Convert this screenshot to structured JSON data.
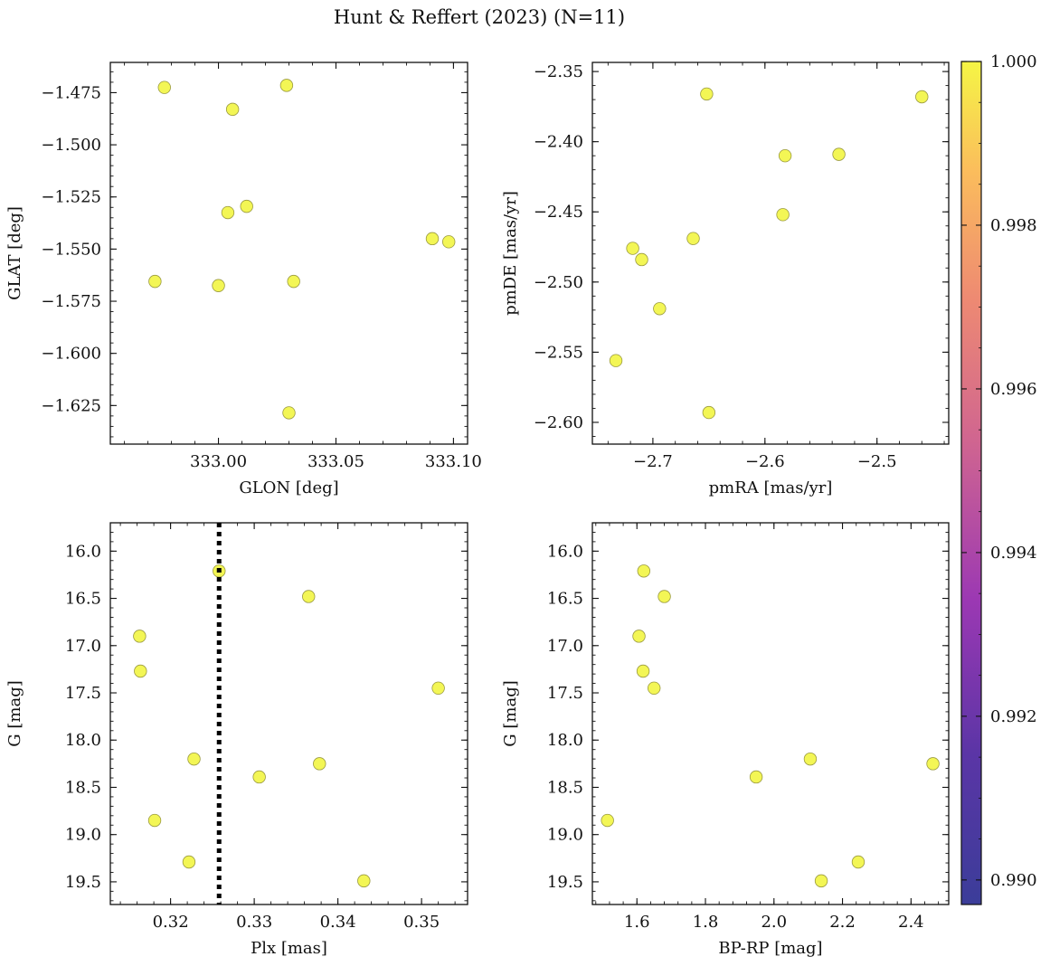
{
  "figure": {
    "title": "Hunt & Reffert (2023) (N=11)"
  },
  "colorbar": {
    "cmap": "plasma",
    "range": [
      0.9897,
      1.0
    ],
    "ticks": [
      {
        "value": 0.99,
        "label": "0.990"
      },
      {
        "value": 0.992,
        "label": "0.992"
      },
      {
        "value": 0.994,
        "label": "0.994"
      },
      {
        "value": 0.996,
        "label": "0.996"
      },
      {
        "value": 0.998,
        "label": "0.998"
      },
      {
        "value": 1.0,
        "label": "1.000"
      }
    ]
  },
  "point_style": {
    "color": "#f2f542",
    "edge": "#9a9a40",
    "opacity": 0.9
  },
  "chart_data": [
    {
      "type": "scatter",
      "id": "glon-glat",
      "xlabel": "GLON [deg]",
      "ylabel": "GLAT [deg]",
      "xlim": [
        332.954,
        333.106
      ],
      "ylim": [
        -1.6435,
        -1.4605
      ],
      "invert_y": false,
      "xticks": [
        {
          "value": 333.0,
          "label": "333.00"
        },
        {
          "value": 333.05,
          "label": "333.05"
        },
        {
          "value": 333.1,
          "label": "333.10"
        }
      ],
      "yticks": [
        {
          "value": -1.475,
          "label": "−1.475"
        },
        {
          "value": -1.5,
          "label": "−1.500"
        },
        {
          "value": -1.525,
          "label": "−1.525"
        },
        {
          "value": -1.55,
          "label": "−1.550"
        },
        {
          "value": -1.575,
          "label": "−1.575"
        },
        {
          "value": -1.6,
          "label": "−1.600"
        },
        {
          "value": -1.625,
          "label": "−1.625"
        }
      ],
      "points": [
        {
          "x": 332.977,
          "y": -1.4725
        },
        {
          "x": 333.029,
          "y": -1.4715
        },
        {
          "x": 333.006,
          "y": -1.483
        },
        {
          "x": 333.004,
          "y": -1.5325
        },
        {
          "x": 333.012,
          "y": -1.5295
        },
        {
          "x": 333.091,
          "y": -1.545
        },
        {
          "x": 333.098,
          "y": -1.5465
        },
        {
          "x": 332.973,
          "y": -1.5655
        },
        {
          "x": 333.0,
          "y": -1.5675
        },
        {
          "x": 333.032,
          "y": -1.5655
        },
        {
          "x": 333.03,
          "y": -1.6285
        }
      ]
    },
    {
      "type": "scatter",
      "id": "pmra-pmde",
      "xlabel": "pmRA [mas/yr]",
      "ylabel": "pmDE [mas/yr]",
      "xlim": [
        -2.754,
        -2.436
      ],
      "ylim": [
        -2.6155,
        -2.3435
      ],
      "invert_y": false,
      "xticks": [
        {
          "value": -2.7,
          "label": "−2.7"
        },
        {
          "value": -2.6,
          "label": "−2.6"
        },
        {
          "value": -2.5,
          "label": "−2.5"
        }
      ],
      "yticks": [
        {
          "value": -2.35,
          "label": "−2.35"
        },
        {
          "value": -2.4,
          "label": "−2.40"
        },
        {
          "value": -2.45,
          "label": "−2.45"
        },
        {
          "value": -2.5,
          "label": "−2.50"
        },
        {
          "value": -2.55,
          "label": "−2.55"
        },
        {
          "value": -2.6,
          "label": "−2.60"
        }
      ],
      "points": [
        {
          "x": -2.652,
          "y": -2.366
        },
        {
          "x": -2.46,
          "y": -2.368
        },
        {
          "x": -2.582,
          "y": -2.41
        },
        {
          "x": -2.534,
          "y": -2.409
        },
        {
          "x": -2.584,
          "y": -2.452
        },
        {
          "x": -2.664,
          "y": -2.469
        },
        {
          "x": -2.718,
          "y": -2.476
        },
        {
          "x": -2.71,
          "y": -2.484
        },
        {
          "x": -2.694,
          "y": -2.519
        },
        {
          "x": -2.733,
          "y": -2.556
        },
        {
          "x": -2.65,
          "y": -2.593
        }
      ]
    },
    {
      "type": "scatter",
      "id": "plx-g",
      "xlabel": "Plx [mas]",
      "ylabel": "G [mag]",
      "xlim": [
        0.3128,
        0.3555
      ],
      "ylim": [
        15.7,
        19.74
      ],
      "invert_y": true,
      "vline": {
        "x": 0.3258,
        "style": "dotted"
      },
      "xticks": [
        {
          "value": 0.32,
          "label": "0.32"
        },
        {
          "value": 0.33,
          "label": "0.33"
        },
        {
          "value": 0.34,
          "label": "0.34"
        },
        {
          "value": 0.35,
          "label": "0.35"
        }
      ],
      "yticks": [
        {
          "value": 16.0,
          "label": "16.0"
        },
        {
          "value": 16.5,
          "label": "16.5"
        },
        {
          "value": 17.0,
          "label": "17.0"
        },
        {
          "value": 17.5,
          "label": "17.5"
        },
        {
          "value": 18.0,
          "label": "18.0"
        },
        {
          "value": 18.5,
          "label": "18.5"
        },
        {
          "value": 19.0,
          "label": "19.0"
        },
        {
          "value": 19.5,
          "label": "19.5"
        }
      ],
      "points": [
        {
          "x": 0.3258,
          "y": 16.21
        },
        {
          "x": 0.3365,
          "y": 16.48
        },
        {
          "x": 0.3163,
          "y": 16.9
        },
        {
          "x": 0.3164,
          "y": 17.27
        },
        {
          "x": 0.352,
          "y": 17.45
        },
        {
          "x": 0.3228,
          "y": 18.2
        },
        {
          "x": 0.3378,
          "y": 18.25
        },
        {
          "x": 0.3306,
          "y": 18.39
        },
        {
          "x": 0.3181,
          "y": 18.85
        },
        {
          "x": 0.3222,
          "y": 19.29
        },
        {
          "x": 0.3431,
          "y": 19.49
        }
      ]
    },
    {
      "type": "scatter",
      "id": "bprp-g",
      "xlabel": "BP-RP [mag]",
      "ylabel": "G [mag]",
      "xlim": [
        1.47,
        2.51
      ],
      "ylim": [
        15.7,
        19.74
      ],
      "invert_y": true,
      "xticks": [
        {
          "value": 1.6,
          "label": "1.6"
        },
        {
          "value": 1.8,
          "label": "1.8"
        },
        {
          "value": 2.0,
          "label": "2.0"
        },
        {
          "value": 2.2,
          "label": "2.2"
        },
        {
          "value": 2.4,
          "label": "2.4"
        }
      ],
      "yticks": [
        {
          "value": 16.0,
          "label": "16.0"
        },
        {
          "value": 16.5,
          "label": "16.5"
        },
        {
          "value": 17.0,
          "label": "17.0"
        },
        {
          "value": 17.5,
          "label": "17.5"
        },
        {
          "value": 18.0,
          "label": "18.0"
        },
        {
          "value": 18.5,
          "label": "18.5"
        },
        {
          "value": 19.0,
          "label": "19.0"
        },
        {
          "value": 19.5,
          "label": "19.5"
        }
      ],
      "points": [
        {
          "x": 1.62,
          "y": 16.21
        },
        {
          "x": 1.68,
          "y": 16.48
        },
        {
          "x": 1.606,
          "y": 16.9
        },
        {
          "x": 1.618,
          "y": 17.27
        },
        {
          "x": 1.65,
          "y": 17.45
        },
        {
          "x": 2.106,
          "y": 18.2
        },
        {
          "x": 2.464,
          "y": 18.25
        },
        {
          "x": 1.948,
          "y": 18.39
        },
        {
          "x": 1.514,
          "y": 18.85
        },
        {
          "x": 2.246,
          "y": 19.29
        },
        {
          "x": 2.138,
          "y": 19.49
        }
      ]
    }
  ]
}
